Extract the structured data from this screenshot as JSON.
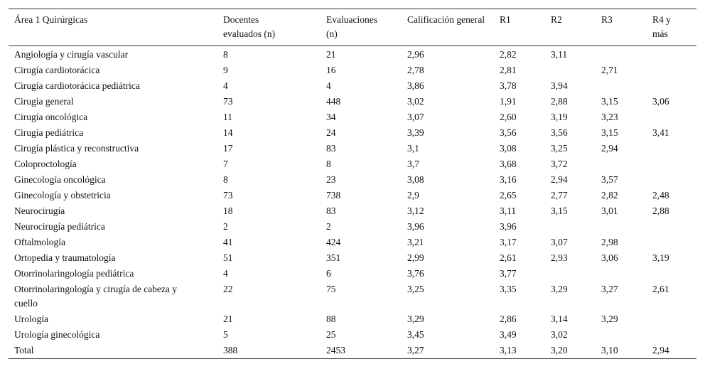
{
  "table": {
    "header": [
      "Área 1 Quirúrgicas",
      "Docentes evaluados (n)",
      "Evaluaciones (n)",
      "Calificación general",
      "R1",
      "R2",
      "R3",
      "R4 y más"
    ],
    "rows": [
      [
        "Angiología y cirugía vascular",
        "8",
        "21",
        "2,96",
        "2,82",
        "3,11",
        null,
        null
      ],
      [
        "Cirugía cardiotorácica",
        "9",
        "16",
        "2,78",
        "2,81",
        null,
        "2,71",
        null
      ],
      [
        "Cirugía cardiotorácica pediátrica",
        "4",
        "4",
        "3,86",
        "3,78",
        "3,94",
        null,
        null
      ],
      [
        "Cirugía general",
        "73",
        "448",
        "3,02",
        "1,91",
        "2,88",
        "3,15",
        "3,06"
      ],
      [
        "Cirugía oncológica",
        "11",
        "34",
        "3,07",
        "2,60",
        "3,19",
        "3,23",
        null
      ],
      [
        "Cirugía pediátrica",
        "14",
        "24",
        "3,39",
        "3,56",
        "3,56",
        "3,15",
        "3,41"
      ],
      [
        "Cirugía plástica y reconstructiva",
        "17",
        "83",
        "3,1",
        "3,08",
        "3,25",
        "2,94",
        null
      ],
      [
        "Coloproctología",
        "7",
        "8",
        "3,7",
        "3,68",
        "3,72",
        null,
        null
      ],
      [
        "Ginecología oncológica",
        "8",
        "23",
        "3,08",
        "3,16",
        "2,94",
        "3,57",
        null
      ],
      [
        "Ginecología y obstetricia",
        "73",
        "738",
        "2,9",
        "2,65",
        "2,77",
        "2,82",
        "2,48"
      ],
      [
        "Neurocirugía",
        "18",
        "83",
        "3,12",
        "3,11",
        "3,15",
        "3,01",
        "2,88"
      ],
      [
        "Neurocirugía pediátrica",
        "2",
        "2",
        "3,96",
        "3,96",
        null,
        null,
        null
      ],
      [
        "Oftalmología",
        "41",
        "424",
        "3,21",
        "3,17",
        "3,07",
        "2,98",
        null
      ],
      [
        "Ortopedia y traumatología",
        "51",
        "351",
        "2,99",
        "2,61",
        "2,93",
        "3,06",
        "3,19"
      ],
      [
        "Otorrinolaringología pediátrica",
        "4",
        "6",
        "3,76",
        "3,77",
        null,
        null,
        null
      ],
      [
        "Otorrinolaringología y cirugía de cabeza y cuello",
        "22",
        "75",
        "3,25",
        "3,35",
        "3,29",
        "3,27",
        "2,61"
      ],
      [
        "Urología",
        "21",
        "88",
        "3,29",
        "2,86",
        "3,14",
        "3,29",
        null
      ],
      [
        "Urología ginecológica",
        "5",
        "25",
        "3,45",
        "3,49",
        "3,02",
        null,
        null
      ],
      [
        "Total",
        "388",
        "2453",
        "3,27",
        "3,13",
        "3,20",
        "3,10",
        "2,94"
      ]
    ]
  }
}
